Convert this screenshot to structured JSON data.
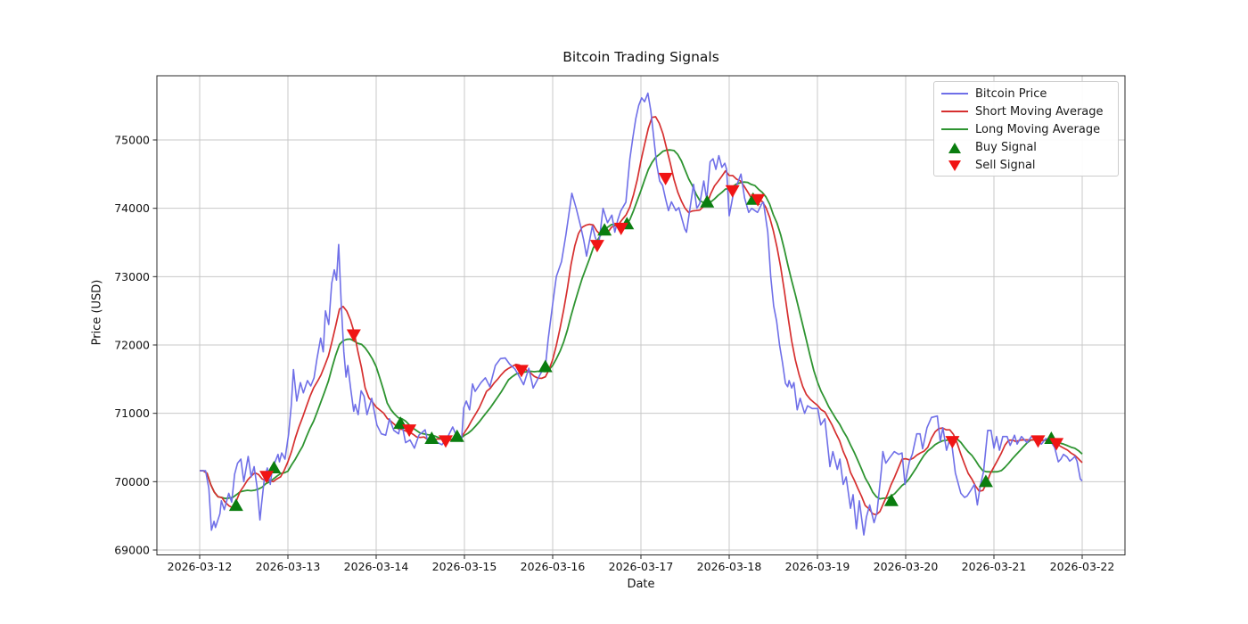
{
  "title": "Bitcoin Trading Signals",
  "axes": {
    "xlabel": "Date",
    "ylabel": "Price (USD)"
  },
  "colors": {
    "price": "#6f6fe8",
    "short_ma": "#d62f2f",
    "long_ma": "#2e9431",
    "buy_marker": "#0a7d0f",
    "sell_marker": "#f01414",
    "grid": "#c8c8c8",
    "spine": "#2a2a2a"
  },
  "legend": {
    "items": [
      {
        "label": "Bitcoin Price",
        "type": "line",
        "color": "#6f6fe8"
      },
      {
        "label": "Short Moving Average",
        "type": "line",
        "color": "#d62f2f"
      },
      {
        "label": "Long Moving Average",
        "type": "line",
        "color": "#2e9431"
      },
      {
        "label": "Buy Signal",
        "type": "triangle-up",
        "color": "#0a7d0f"
      },
      {
        "label": "Sell Signal",
        "type": "triangle-down",
        "color": "#f01414"
      }
    ]
  },
  "chart_data": {
    "type": "line",
    "title": "Bitcoin Trading Signals",
    "xlabel": "Date",
    "ylabel": "Price (USD)",
    "grid": true,
    "legend_position": "upper right",
    "x_axis": {
      "unit": "hours since 2026-03-12 00:00",
      "tick_hours": [
        0,
        24,
        48,
        72,
        96,
        120,
        144,
        168,
        192,
        216,
        240
      ],
      "tick_labels": [
        "2026-03-12",
        "2026-03-13",
        "2026-03-14",
        "2026-03-15",
        "2026-03-16",
        "2026-03-17",
        "2026-03-18",
        "2026-03-19",
        "2026-03-20",
        "2026-03-21",
        "2026-03-22"
      ]
    },
    "y_axis": {
      "ticks": [
        69000,
        70000,
        71000,
        72000,
        73000,
        74000,
        75000
      ],
      "tick_labels": [
        "69000",
        "70000",
        "71000",
        "72000",
        "73000",
        "74000",
        "75000"
      ],
      "ylim": [
        68930,
        75940
      ]
    },
    "series": [
      {
        "name": "Bitcoin Price",
        "color": "#6f6fe8",
        "keypoints": [
          [
            0,
            70160
          ],
          [
            1.6,
            70160
          ],
          [
            2.5,
            69900
          ],
          [
            3.2,
            69290
          ],
          [
            3.9,
            69420
          ],
          [
            4.3,
            69330
          ],
          [
            5.5,
            69530
          ],
          [
            5.9,
            69720
          ],
          [
            6.7,
            69590
          ],
          [
            7.9,
            69830
          ],
          [
            8.7,
            69700
          ],
          [
            9.5,
            70110
          ],
          [
            10.3,
            70270
          ],
          [
            11.2,
            70330
          ],
          [
            12,
            70000
          ],
          [
            13.2,
            70370
          ],
          [
            14,
            70070
          ],
          [
            14.8,
            70220
          ],
          [
            15.6,
            69920
          ],
          [
            16.4,
            69440
          ],
          [
            16.8,
            69660
          ],
          [
            17.6,
            70050
          ],
          [
            18.4,
            70200
          ],
          [
            19.2,
            69960
          ],
          [
            19.6,
            70130
          ],
          [
            20.5,
            70290
          ],
          [
            21.3,
            70400
          ],
          [
            21.7,
            70290
          ],
          [
            22.3,
            70420
          ],
          [
            23.2,
            70330
          ],
          [
            24.2,
            70700
          ],
          [
            24.9,
            71110
          ],
          [
            25.5,
            71640
          ],
          [
            26.4,
            71180
          ],
          [
            27.4,
            71450
          ],
          [
            28.2,
            71300
          ],
          [
            29.3,
            71480
          ],
          [
            30.2,
            71400
          ],
          [
            31.1,
            71520
          ],
          [
            31.9,
            71800
          ],
          [
            32.9,
            72100
          ],
          [
            33.6,
            71900
          ],
          [
            34.2,
            72500
          ],
          [
            35.1,
            72300
          ],
          [
            35.9,
            72900
          ],
          [
            36.6,
            73100
          ],
          [
            37.2,
            72950
          ],
          [
            37.8,
            73470
          ],
          [
            38.5,
            72600
          ],
          [
            39.2,
            71900
          ],
          [
            39.8,
            71530
          ],
          [
            40.3,
            71700
          ],
          [
            41.1,
            71350
          ],
          [
            41.9,
            71030
          ],
          [
            42.3,
            71130
          ],
          [
            43.1,
            70980
          ],
          [
            43.9,
            71330
          ],
          [
            44.7,
            71250
          ],
          [
            45.5,
            70980
          ],
          [
            46.8,
            71220
          ],
          [
            48.2,
            70830
          ],
          [
            49.4,
            70700
          ],
          [
            50.6,
            70680
          ],
          [
            51.6,
            70920
          ],
          [
            52.8,
            70750
          ],
          [
            54.1,
            70700
          ],
          [
            54.8,
            70900
          ],
          [
            56,
            70570
          ],
          [
            57.2,
            70610
          ],
          [
            58.4,
            70490
          ],
          [
            59.6,
            70680
          ],
          [
            61.3,
            70760
          ],
          [
            62.1,
            70560
          ],
          [
            63.1,
            70610
          ],
          [
            64.5,
            70580
          ],
          [
            65.9,
            70540
          ],
          [
            67.6,
            70670
          ],
          [
            68.8,
            70800
          ],
          [
            70.1,
            70640
          ],
          [
            71.2,
            70590
          ],
          [
            71.8,
            71080
          ],
          [
            72.5,
            71180
          ],
          [
            73.4,
            71050
          ],
          [
            74.2,
            71430
          ],
          [
            74.9,
            71320
          ],
          [
            76.5,
            71450
          ],
          [
            77.7,
            71520
          ],
          [
            78.9,
            71390
          ],
          [
            80.4,
            71700
          ],
          [
            81.8,
            71800
          ],
          [
            83.1,
            71810
          ],
          [
            84.3,
            71720
          ],
          [
            85.7,
            71650
          ],
          [
            86.5,
            71580
          ],
          [
            88.1,
            71420
          ],
          [
            89.5,
            71660
          ],
          [
            90.7,
            71370
          ],
          [
            92.8,
            71590
          ],
          [
            94,
            71680
          ],
          [
            94.8,
            72090
          ],
          [
            96,
            72600
          ],
          [
            97,
            73000
          ],
          [
            98.4,
            73220
          ],
          [
            99.6,
            73610
          ],
          [
            100.3,
            73870
          ],
          [
            101.2,
            74220
          ],
          [
            102.4,
            74000
          ],
          [
            103.6,
            73740
          ],
          [
            104.4,
            73540
          ],
          [
            105.2,
            73300
          ],
          [
            106.8,
            73740
          ],
          [
            107.6,
            73570
          ],
          [
            108.5,
            73460
          ],
          [
            109.7,
            74000
          ],
          [
            110.9,
            73790
          ],
          [
            112.1,
            73900
          ],
          [
            112.9,
            73650
          ],
          [
            113.7,
            73830
          ],
          [
            114.5,
            73960
          ],
          [
            115.9,
            74090
          ],
          [
            116.4,
            74390
          ],
          [
            117,
            74725
          ],
          [
            117.8,
            75030
          ],
          [
            118.6,
            75310
          ],
          [
            119.4,
            75505
          ],
          [
            120.2,
            75615
          ],
          [
            121,
            75560
          ],
          [
            121.9,
            75685
          ],
          [
            122.7,
            75425
          ],
          [
            123.5,
            75030
          ],
          [
            124.3,
            74640
          ],
          [
            125.1,
            74400
          ],
          [
            125.9,
            74335
          ],
          [
            126.7,
            74140
          ],
          [
            127.5,
            73965
          ],
          [
            128.3,
            74095
          ],
          [
            129.5,
            73965
          ],
          [
            130.3,
            74010
          ],
          [
            131.9,
            73700
          ],
          [
            132.4,
            73650
          ],
          [
            134.3,
            74350
          ],
          [
            135.2,
            74000
          ],
          [
            136,
            74070
          ],
          [
            137.1,
            74400
          ],
          [
            137.9,
            74130
          ],
          [
            138.8,
            74680
          ],
          [
            139.6,
            74725
          ],
          [
            140.4,
            74570
          ],
          [
            141.2,
            74770
          ],
          [
            142,
            74600
          ],
          [
            142.8,
            74660
          ],
          [
            143.3,
            74570
          ],
          [
            144,
            73890
          ],
          [
            145.1,
            74200
          ],
          [
            147.2,
            74500
          ],
          [
            148.2,
            74150
          ],
          [
            149.3,
            73940
          ],
          [
            150.1,
            74000
          ],
          [
            151.7,
            73940
          ],
          [
            152.9,
            74070
          ],
          [
            153.3,
            74090
          ],
          [
            154.5,
            73650
          ],
          [
            155.3,
            73000
          ],
          [
            156.1,
            72570
          ],
          [
            156.9,
            72350
          ],
          [
            157.7,
            72000
          ],
          [
            158.5,
            71740
          ],
          [
            159.3,
            71440
          ],
          [
            159.9,
            71390
          ],
          [
            160.3,
            71480
          ],
          [
            161,
            71370
          ],
          [
            161.6,
            71450
          ],
          [
            162.5,
            71050
          ],
          [
            163.3,
            71220
          ],
          [
            164.5,
            71000
          ],
          [
            165.3,
            71110
          ],
          [
            166.6,
            71070
          ],
          [
            168.1,
            71070
          ],
          [
            168.9,
            70830
          ],
          [
            170,
            70920
          ],
          [
            171.4,
            70220
          ],
          [
            172.2,
            70440
          ],
          [
            173.4,
            70180
          ],
          [
            174.1,
            70330
          ],
          [
            175,
            69960
          ],
          [
            175.8,
            70070
          ],
          [
            177,
            69610
          ],
          [
            177.7,
            69810
          ],
          [
            178.6,
            69310
          ],
          [
            179.4,
            69720
          ],
          [
            180.6,
            69220
          ],
          [
            181.3,
            69480
          ],
          [
            182.2,
            69660
          ],
          [
            183.4,
            69400
          ],
          [
            184.2,
            69550
          ],
          [
            185.4,
            70180
          ],
          [
            185.8,
            70440
          ],
          [
            186.6,
            70270
          ],
          [
            187.5,
            70340
          ],
          [
            188.9,
            70440
          ],
          [
            190.1,
            70400
          ],
          [
            191,
            70420
          ],
          [
            191.8,
            69960
          ],
          [
            193,
            70290
          ],
          [
            193.8,
            70400
          ],
          [
            195,
            70700
          ],
          [
            195.9,
            70700
          ],
          [
            196.6,
            70480
          ],
          [
            197.8,
            70790
          ],
          [
            199,
            70940
          ],
          [
            200.6,
            70960
          ],
          [
            201.4,
            70590
          ],
          [
            202.1,
            70790
          ],
          [
            203.1,
            70460
          ],
          [
            203.8,
            70590
          ],
          [
            204.6,
            70520
          ],
          [
            205.5,
            70130
          ],
          [
            207,
            69830
          ],
          [
            208,
            69770
          ],
          [
            208.7,
            69790
          ],
          [
            209.8,
            69880
          ],
          [
            210.7,
            69960
          ],
          [
            211.5,
            69660
          ],
          [
            212.3,
            69940
          ],
          [
            213.2,
            70150
          ],
          [
            214.3,
            70750
          ],
          [
            215.2,
            70750
          ],
          [
            216,
            70490
          ],
          [
            216.7,
            70660
          ],
          [
            217.5,
            70460
          ],
          [
            218.4,
            70660
          ],
          [
            219.6,
            70660
          ],
          [
            220.4,
            70530
          ],
          [
            221.6,
            70680
          ],
          [
            222.3,
            70550
          ],
          [
            223.5,
            70660
          ],
          [
            225,
            70570
          ],
          [
            226.2,
            70660
          ],
          [
            227.4,
            70620
          ],
          [
            228.9,
            70550
          ],
          [
            230.1,
            70630
          ],
          [
            231.3,
            70600
          ],
          [
            232.5,
            70500
          ],
          [
            233.5,
            70290
          ],
          [
            234.2,
            70330
          ],
          [
            234.9,
            70400
          ],
          [
            235.9,
            70360
          ],
          [
            236.6,
            70300
          ],
          [
            237.3,
            70330
          ],
          [
            238,
            70370
          ],
          [
            238.6,
            70300
          ],
          [
            239.5,
            70040
          ],
          [
            240,
            70010
          ]
        ]
      },
      {
        "name": "Short Moving Average",
        "color": "#d62f2f",
        "derived": "rolling_mean_of_price",
        "window_hours": 7
      },
      {
        "name": "Long Moving Average",
        "color": "#2e9431",
        "derived": "rolling_mean_of_price",
        "window_hours": 13
      }
    ],
    "signals": {
      "buy": {
        "label": "Buy Signal",
        "marker": "triangle-up",
        "color": "#0a7d0f",
        "points": [
          [
            9.9,
            69650
          ],
          [
            20.2,
            70200
          ],
          [
            54.6,
            70850
          ],
          [
            63.1,
            70630
          ],
          [
            70.0,
            70660
          ],
          [
            94.0,
            71680
          ],
          [
            110.1,
            73680
          ],
          [
            116.2,
            73770
          ],
          [
            138.0,
            74090
          ],
          [
            150.5,
            74130
          ],
          [
            188.1,
            69720
          ],
          [
            213.8,
            70000
          ],
          [
            231.6,
            70630
          ]
        ]
      },
      "sell": {
        "label": "Sell Signal",
        "marker": "triangle-down",
        "color": "#f01414",
        "points": [
          [
            18.2,
            70080
          ],
          [
            41.9,
            72150
          ],
          [
            57.0,
            70760
          ],
          [
            66.9,
            70600
          ],
          [
            87.5,
            71630
          ],
          [
            108.1,
            73460
          ],
          [
            114.6,
            73710
          ],
          [
            126.7,
            74440
          ],
          [
            144.9,
            74260
          ],
          [
            151.8,
            74130
          ],
          [
            204.7,
            70590
          ],
          [
            228.0,
            70600
          ],
          [
            233.0,
            70560
          ]
        ]
      }
    }
  }
}
